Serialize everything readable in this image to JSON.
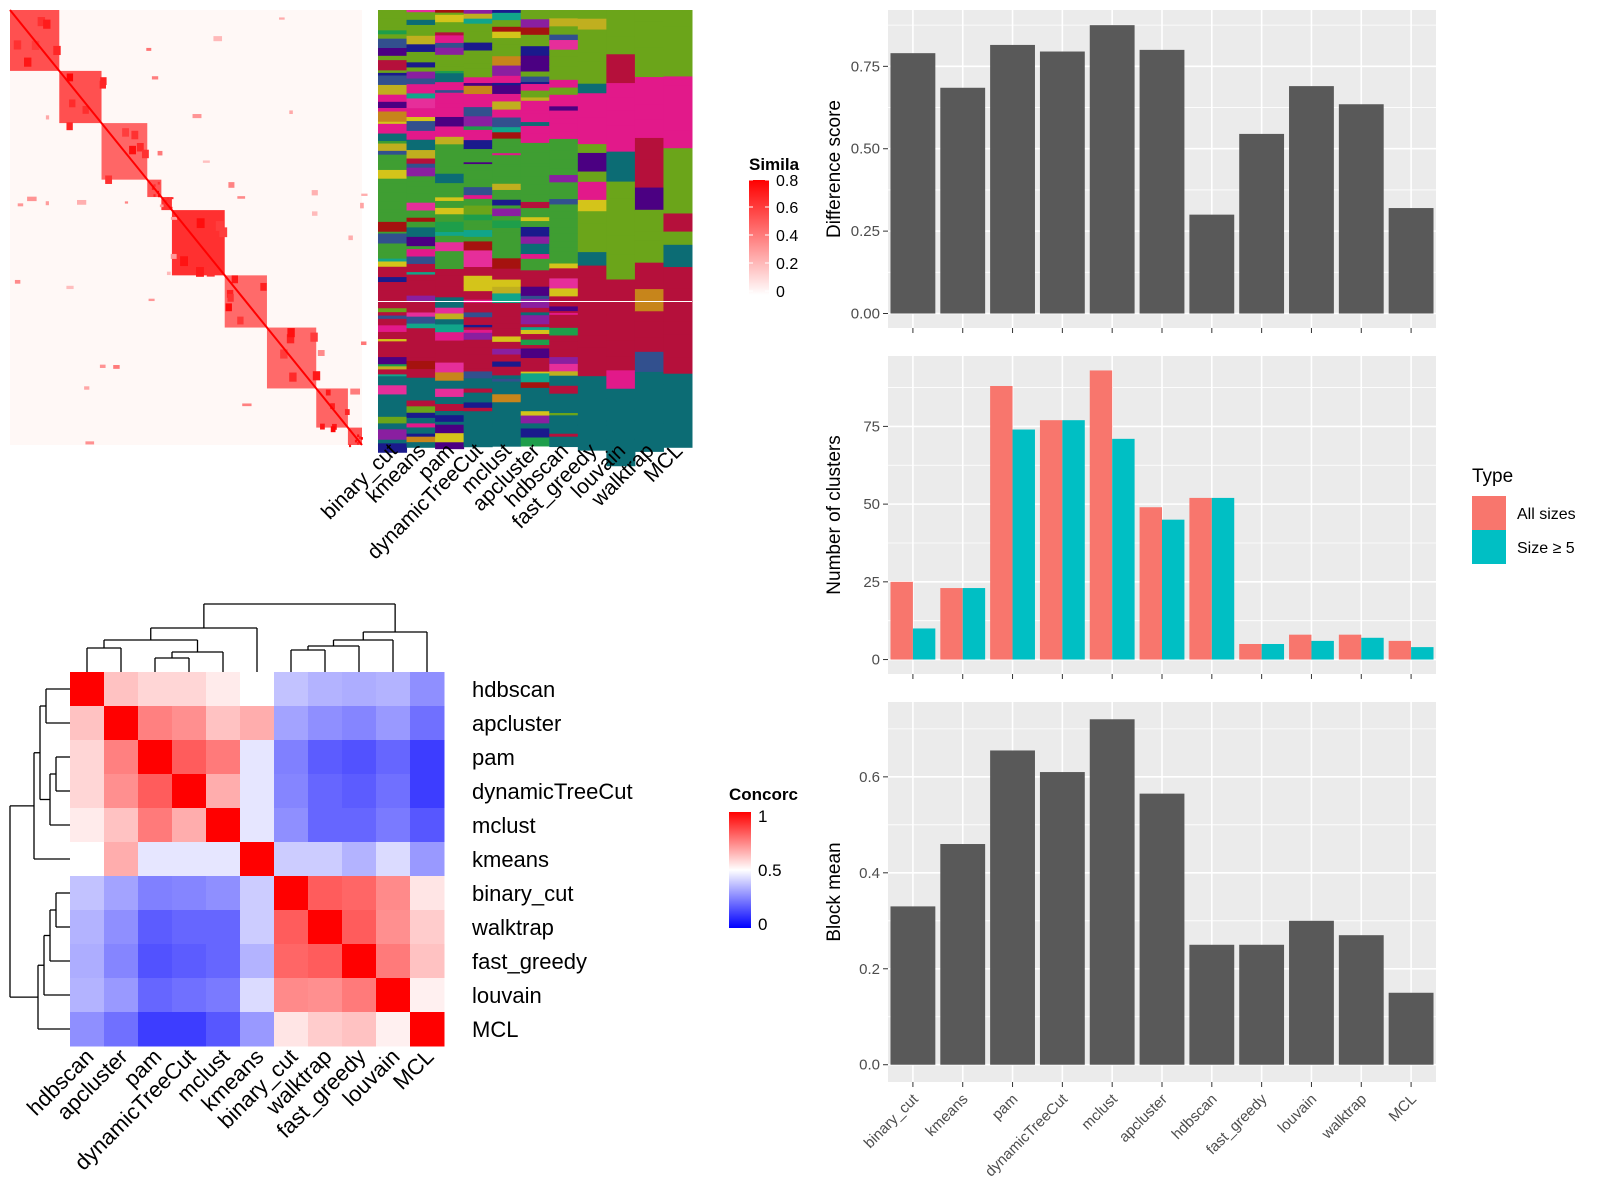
{
  "similarity_legend": {
    "title": "Simila",
    "ticks": [
      "0.8",
      "0.6",
      "0.4",
      "0.2",
      "0"
    ]
  },
  "concordance_legend": {
    "title": "Concorc",
    "ticks": [
      "1",
      "0.5",
      "0"
    ]
  },
  "type_legend": {
    "title": "Type",
    "items": [
      {
        "label": "All sizes",
        "color": "#F8766D"
      },
      {
        "label": "Size ≥ 5",
        "color": "#00BFC4"
      }
    ]
  },
  "colors": {
    "high": "#FF0000",
    "mid": "#FFFFFF",
    "low": "#0000FF",
    "bar": "#595959",
    "panel_bg": "#EBEBEB"
  },
  "chart_data": [
    {
      "type": "heatmap",
      "name": "similarity-heatmap",
      "title": "",
      "note": "consensus similarity matrix with block structure",
      "blocks": [
        0.14,
        0.12,
        0.13,
        0.04,
        0.03,
        0.15,
        0.12,
        0.14,
        0.09,
        0.04
      ],
      "block_value_range": [
        0,
        0.8
      ]
    },
    {
      "type": "heatmap",
      "name": "partition-membership-heatmap",
      "columns": [
        "binary_cut",
        "kmeans",
        "pam",
        "dynamicTreeCut",
        "mclust",
        "apcluster",
        "hdbscan",
        "fast_greedy",
        "louvain",
        "walktrap",
        "MCL"
      ]
    },
    {
      "type": "heatmap",
      "name": "concordance-heatmap",
      "rows": [
        "hdbscan",
        "apcluster",
        "pam",
        "dynamicTreeCut",
        "mclust",
        "kmeans",
        "binary_cut",
        "walktrap",
        "fast_greedy",
        "louvain",
        "MCL"
      ],
      "columns": [
        "hdbscan",
        "apcluster",
        "pam",
        "dynamicTreeCut",
        "mclust",
        "kmeans",
        "binary_cut",
        "walktrap",
        "fast_greedy",
        "louvain",
        "MCL"
      ],
      "value_range": [
        0,
        1
      ],
      "values": [
        [
          1.0,
          0.62,
          0.58,
          0.58,
          0.54,
          0.5,
          0.38,
          0.35,
          0.34,
          0.35,
          0.28
        ],
        [
          0.62,
          1.0,
          0.75,
          0.72,
          0.62,
          0.66,
          0.32,
          0.28,
          0.26,
          0.3,
          0.22
        ],
        [
          0.58,
          0.75,
          1.0,
          0.82,
          0.76,
          0.45,
          0.25,
          0.18,
          0.16,
          0.2,
          0.12
        ],
        [
          0.58,
          0.72,
          0.82,
          1.0,
          0.66,
          0.45,
          0.26,
          0.2,
          0.18,
          0.22,
          0.12
        ],
        [
          0.54,
          0.62,
          0.76,
          0.66,
          1.0,
          0.45,
          0.28,
          0.2,
          0.2,
          0.24,
          0.17
        ],
        [
          0.5,
          0.66,
          0.45,
          0.45,
          0.45,
          1.0,
          0.4,
          0.4,
          0.35,
          0.43,
          0.3
        ],
        [
          0.38,
          0.32,
          0.25,
          0.26,
          0.28,
          0.4,
          1.0,
          0.82,
          0.8,
          0.73,
          0.55
        ],
        [
          0.35,
          0.28,
          0.18,
          0.2,
          0.2,
          0.4,
          0.82,
          1.0,
          0.82,
          0.72,
          0.6
        ],
        [
          0.34,
          0.26,
          0.16,
          0.18,
          0.2,
          0.35,
          0.8,
          0.82,
          1.0,
          0.76,
          0.62
        ],
        [
          0.35,
          0.3,
          0.2,
          0.22,
          0.24,
          0.43,
          0.73,
          0.72,
          0.76,
          1.0,
          0.53
        ],
        [
          0.28,
          0.22,
          0.12,
          0.12,
          0.17,
          0.3,
          0.55,
          0.6,
          0.62,
          0.53,
          1.0
        ]
      ]
    },
    {
      "type": "bar",
      "name": "difference-score",
      "categories": [
        "binary_cut",
        "kmeans",
        "pam",
        "dynamicTreeCut",
        "mclust",
        "apcluster",
        "hdbscan",
        "fast_greedy",
        "louvain",
        "walktrap",
        "MCL"
      ],
      "values": [
        0.79,
        0.685,
        0.815,
        0.795,
        0.875,
        0.8,
        0.3,
        0.545,
        0.69,
        0.635,
        0.32
      ],
      "xlabel": "",
      "ylabel": "Difference score",
      "ylim": [
        -0.044,
        0.921
      ],
      "yticks": [
        "0.00",
        "0.25",
        "0.50",
        "0.75"
      ]
    },
    {
      "type": "bar",
      "name": "number-of-clusters",
      "categories": [
        "binary_cut",
        "kmeans",
        "pam",
        "dynamicTreeCut",
        "mclust",
        "apcluster",
        "hdbscan",
        "fast_greedy",
        "louvain",
        "walktrap",
        "MCL"
      ],
      "series": [
        {
          "name": "All sizes",
          "values": [
            25,
            23,
            88,
            77,
            93,
            49,
            52,
            5,
            8,
            8,
            6
          ]
        },
        {
          "name": "Size ≥ 5",
          "values": [
            10,
            23,
            74,
            77,
            71,
            45,
            52,
            5,
            6,
            7,
            4
          ]
        }
      ],
      "xlabel": "",
      "ylabel": "Number of clusters",
      "ylim": [
        -4.65,
        97.65
      ],
      "yticks": [
        "0",
        "25",
        "50",
        "75"
      ]
    },
    {
      "type": "bar",
      "name": "block-mean",
      "categories": [
        "binary_cut",
        "kmeans",
        "pam",
        "dynamicTreeCut",
        "mclust",
        "apcluster",
        "hdbscan",
        "fast_greedy",
        "louvain",
        "walktrap",
        "MCL"
      ],
      "values": [
        0.33,
        0.46,
        0.655,
        0.61,
        0.72,
        0.565,
        0.25,
        0.25,
        0.3,
        0.27,
        0.15
      ],
      "xlabel": "",
      "ylabel": "Block mean",
      "ylim": [
        -0.036,
        0.756
      ],
      "yticks": [
        "0.0",
        "0.2",
        "0.4",
        "0.6"
      ]
    }
  ]
}
